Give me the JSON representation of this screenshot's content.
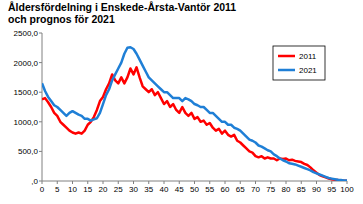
{
  "chart_data": {
    "type": "line",
    "title": "Åldersfördelning i Enskede-Årsta-Vantör 2011 och prognos för 2021",
    "x": [
      0,
      1,
      2,
      3,
      4,
      5,
      6,
      7,
      8,
      9,
      10,
      11,
      12,
      13,
      14,
      15,
      16,
      17,
      18,
      19,
      20,
      21,
      22,
      23,
      24,
      25,
      26,
      27,
      28,
      29,
      30,
      31,
      32,
      33,
      34,
      35,
      36,
      37,
      38,
      39,
      40,
      41,
      42,
      43,
      44,
      45,
      46,
      47,
      48,
      49,
      50,
      51,
      52,
      53,
      54,
      55,
      56,
      57,
      58,
      59,
      60,
      61,
      62,
      63,
      64,
      65,
      66,
      67,
      68,
      69,
      70,
      71,
      72,
      73,
      74,
      75,
      76,
      77,
      78,
      79,
      80,
      81,
      82,
      83,
      84,
      85,
      86,
      87,
      88,
      89,
      90,
      91,
      92,
      93,
      94,
      95,
      96,
      97,
      98,
      99,
      100
    ],
    "series": [
      {
        "name": "2011",
        "color": "#ff0000",
        "values": [
          1380,
          1400,
          1330,
          1250,
          1150,
          1100,
          1000,
          950,
          900,
          850,
          820,
          800,
          820,
          800,
          850,
          950,
          1000,
          1080,
          1200,
          1350,
          1420,
          1550,
          1650,
          1800,
          1700,
          1650,
          1750,
          1650,
          1750,
          1900,
          1800,
          1920,
          1750,
          1600,
          1550,
          1500,
          1550,
          1450,
          1500,
          1400,
          1300,
          1350,
          1250,
          1300,
          1200,
          1150,
          1250,
          1150,
          1100,
          1150,
          1050,
          1080,
          1000,
          1020,
          950,
          980,
          900,
          850,
          880,
          800,
          850,
          780,
          750,
          780,
          680,
          650,
          600,
          550,
          500,
          480,
          420,
          400,
          420,
          380,
          400,
          380,
          380,
          350,
          380,
          370,
          380,
          350,
          360,
          340,
          330,
          320,
          290,
          270,
          230,
          180,
          140,
          100,
          80,
          60,
          40,
          30,
          20,
          15,
          10,
          5,
          5
        ]
      },
      {
        "name": "2021",
        "color": "#1f7fd6",
        "values": [
          1650,
          1520,
          1420,
          1350,
          1280,
          1250,
          1200,
          1150,
          1100,
          1150,
          1180,
          1150,
          1120,
          1100,
          1050,
          1050,
          1020,
          1040,
          1060,
          1150,
          1300,
          1450,
          1550,
          1700,
          1800,
          1900,
          2000,
          2150,
          2250,
          2260,
          2230,
          2150,
          2050,
          1950,
          1850,
          1750,
          1700,
          1650,
          1600,
          1550,
          1500,
          1500,
          1450,
          1400,
          1400,
          1400,
          1350,
          1400,
          1380,
          1350,
          1300,
          1280,
          1250,
          1250,
          1200,
          1150,
          1150,
          1100,
          1050,
          1000,
          1000,
          950,
          950,
          900,
          880,
          850,
          800,
          750,
          700,
          680,
          650,
          600,
          580,
          550,
          520,
          500,
          450,
          420,
          380,
          350,
          330,
          300,
          290,
          280,
          260,
          240,
          220,
          200,
          180,
          150,
          130,
          110,
          90,
          70,
          50,
          40,
          30,
          20,
          15,
          10,
          10
        ]
      }
    ],
    "xlim": [
      0,
      100
    ],
    "xticks": [
      0,
      5,
      10,
      15,
      20,
      25,
      30,
      35,
      40,
      45,
      50,
      55,
      60,
      65,
      70,
      75,
      80,
      85,
      90,
      95,
      100
    ],
    "ylim": [
      0,
      2500
    ],
    "yticks": [
      {
        "value": 0,
        "label": ",0"
      },
      {
        "value": 500,
        "label": "500,0"
      },
      {
        "value": 1000,
        "label": "1000,0"
      },
      {
        "value": 1500,
        "label": "1500,0"
      },
      {
        "value": 2000,
        "label": "2000,0"
      },
      {
        "value": 2500,
        "label": "2500,0"
      }
    ],
    "grid": false,
    "legend": "upper right"
  }
}
